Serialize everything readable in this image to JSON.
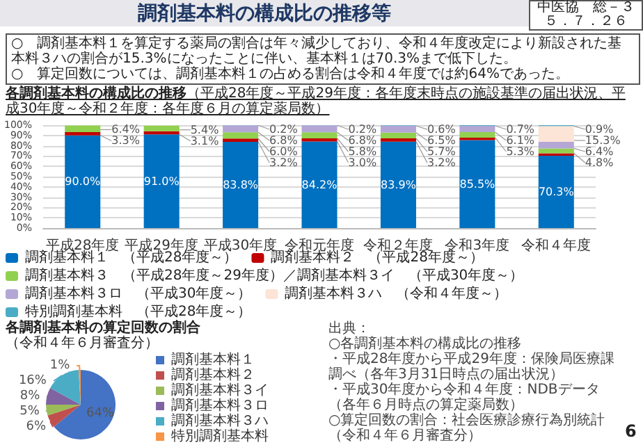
{
  "chart_data": [
    {
      "type": "bar",
      "stacked": true,
      "title": "各調剤基本料の構成比の推移",
      "subtitle": "（平成28年度～平成29年度：各年度末時点の施設基準の届出状況、平成30年度～令和２年度：各年度６月の算定薬局数）",
      "annotations": [
        "調剤基本料の構成比の推移等",
        "中医協　総－３",
        "５．７．２６",
        "○　調剤基本料１を算定する薬局の割合は年々減少しており、令和４年度改定により新設された基本料３ハの割合が15.3%になったことに伴い、基本料１は70.3%まで低下した。",
        "○　算定回数については、調剤基本料１の占める割合は令和４年度では約64%であった。",
        "出典：",
        "○各調剤基本料の構成比の推移",
        "・平成28年度から平成29年度：保険局医療課調べ（各年3月31日時点の届出状況）",
        "・平成30年度から令和４年度：NDBデータ（各年６月時点の算定薬局数）",
        "○算定回数の割合：社会医療診療行為別統計（令和４年６月審査分）",
        "6"
      ],
      "categories": [
        "平成28年度",
        "平成29年度",
        "平成30年度",
        "令和元年度",
        "令和２年度",
        "令和3年度",
        "令和４年度"
      ],
      "series": [
        {
          "name": "調剤基本料１　（平成28年度～）",
          "color": "#0070c0",
          "values": [
            90.0,
            91.0,
            83.8,
            84.2,
            83.9,
            85.5,
            70.3
          ],
          "value_labels": [
            "90.0%",
            "91.0%",
            "83.8%",
            "84.2%",
            "83.9%",
            "85.5%",
            "70.3%"
          ]
        },
        {
          "name": "調剤基本料２　（平成28年度～）",
          "color": "#c00000",
          "values": [
            3.3,
            3.1,
            3.2,
            3.0,
            3.2,
            2.4,
            2.3
          ],
          "value_labels": [
            "3.3%",
            "3.1%",
            "3.2%",
            "3.0%",
            "3.2%",
            null,
            null
          ]
        },
        {
          "name": "調剤基本料３　（平成28年度～29年度）／調剤基本料３イ　（平成30年度～）",
          "color": "#92d050",
          "values": [
            6.4,
            5.4,
            6.0,
            5.8,
            5.7,
            5.3,
            4.8
          ],
          "value_labels": [
            "6.4%",
            "5.4%",
            "6.0%",
            "5.8%",
            "5.7%",
            "5.3%",
            "4.8%"
          ]
        },
        {
          "name": "調剤基本料３ロ　（平成30年度～）",
          "color": "#b4a7d6",
          "values": [
            null,
            null,
            6.8,
            6.8,
            6.5,
            6.1,
            6.4
          ],
          "value_labels": [
            null,
            null,
            "6.8%",
            "6.8%",
            "6.5%",
            "6.1%",
            "6.4%"
          ]
        },
        {
          "name": "調剤基本料３ハ　（令和４年度～）",
          "color": "#fce4d6",
          "values": [
            null,
            null,
            null,
            null,
            null,
            null,
            15.3
          ],
          "value_labels": [
            null,
            null,
            null,
            null,
            null,
            null,
            "15.3%"
          ]
        },
        {
          "name": "特別調剤基本料　（平成28年度～）",
          "color": "#4bacc6",
          "values": [
            null,
            null,
            0.2,
            0.2,
            0.6,
            0.7,
            0.9
          ],
          "value_labels": [
            null,
            null,
            "0.2%",
            "0.2%",
            "0.6%",
            "0.7%",
            "0.9%"
          ]
        }
      ],
      "ylim": [
        0,
        100
      ],
      "yticks": [
        {
          "value": 0,
          "label": "0%"
        },
        {
          "value": 10,
          "label": "10%"
        },
        {
          "value": 20,
          "label": "20%"
        },
        {
          "value": 30,
          "label": "30%"
        },
        {
          "value": 40,
          "label": "40%"
        },
        {
          "value": 50,
          "label": "50%"
        },
        {
          "value": 60,
          "label": "60%"
        },
        {
          "value": 70,
          "label": "70%"
        },
        {
          "value": 80,
          "label": "80%"
        },
        {
          "value": 90,
          "label": "90%"
        },
        {
          "value": 100,
          "label": "100%"
        }
      ],
      "grid": "y",
      "legend": "bottom"
    },
    {
      "type": "pie",
      "title": "各調剤基本料の算定回数の割合",
      "subtitle": "（令和４年６月審査分）",
      "categories": [
        "調剤基本料１",
        "調剤基本料２",
        "調剤基本料３イ",
        "調剤基本料３ロ",
        "調剤基本料３ハ",
        "特別調剤基本料"
      ],
      "values": [
        64,
        6,
        5,
        8,
        16,
        1
      ],
      "colors": [
        "#4472c4",
        "#c0504d",
        "#9bbb59",
        "#8064a2",
        "#4bacc6",
        "#f79646"
      ],
      "value_labels": [
        "64%",
        "6%",
        "5%",
        "8%",
        "16%",
        "1%"
      ],
      "legend": "right"
    }
  ]
}
